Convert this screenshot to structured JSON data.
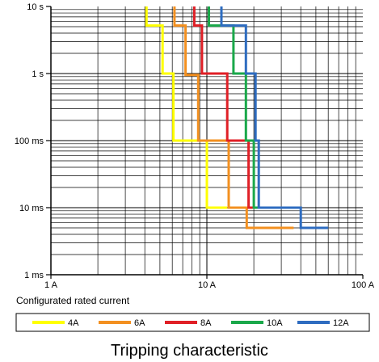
{
  "chart_data": {
    "type": "line",
    "title": "",
    "caption": "Tripping characteristic",
    "xlabel": "Configurated rated current",
    "ylabel": "",
    "x_scale": "log",
    "y_scale": "log",
    "x_ticks": [
      {
        "value": 1,
        "label": "1 A"
      },
      {
        "value": 10,
        "label": "10 A"
      },
      {
        "value": 100,
        "label": "100 A"
      }
    ],
    "y_ticks": [
      {
        "value": 0.001,
        "label": "1 ms"
      },
      {
        "value": 0.01,
        "label": "10 ms"
      },
      {
        "value": 0.1,
        "label": "100 ms"
      },
      {
        "value": 1,
        "label": "1 s"
      },
      {
        "value": 10,
        "label": "10 s"
      }
    ],
    "xlim": [
      1,
      100
    ],
    "ylim": [
      0.001,
      10
    ],
    "grid": true,
    "legend_position": "bottom",
    "series": [
      {
        "name": "4A",
        "color": "#ffff00",
        "points": [
          [
            4.1,
            10
          ],
          [
            4.1,
            5.2
          ],
          [
            5.2,
            5.2
          ],
          [
            5.2,
            1.0
          ],
          [
            6.1,
            1.0
          ],
          [
            6.1,
            0.1
          ],
          [
            10,
            0.1
          ],
          [
            10,
            0.01
          ],
          [
            13.5,
            0.01
          ]
        ]
      },
      {
        "name": "6A",
        "color": "#f39020",
        "points": [
          [
            6.2,
            10
          ],
          [
            6.2,
            5.2
          ],
          [
            7.3,
            5.2
          ],
          [
            7.3,
            0.95
          ],
          [
            8.8,
            0.95
          ],
          [
            8.8,
            0.1
          ],
          [
            13.8,
            0.1
          ],
          [
            13.8,
            0.01
          ],
          [
            18,
            0.01
          ],
          [
            18,
            0.005
          ],
          [
            36,
            0.005
          ]
        ]
      },
      {
        "name": "8A",
        "color": "#e01f26",
        "points": [
          [
            8.3,
            10
          ],
          [
            8.3,
            5.2
          ],
          [
            9.3,
            5.2
          ],
          [
            9.3,
            1.0
          ],
          [
            13.5,
            1.0
          ],
          [
            13.5,
            0.1
          ],
          [
            18.5,
            0.1
          ],
          [
            18.5,
            0.01
          ],
          [
            21,
            0.01
          ]
        ]
      },
      {
        "name": "10A",
        "color": "#1aa84a",
        "points": [
          [
            10.3,
            10
          ],
          [
            10.3,
            5.2
          ],
          [
            14.8,
            5.2
          ],
          [
            14.8,
            1.0
          ],
          [
            17.8,
            1.0
          ],
          [
            17.8,
            0.1
          ],
          [
            20,
            0.1
          ],
          [
            20,
            0.01
          ],
          [
            23,
            0.01
          ]
        ]
      },
      {
        "name": "12A",
        "color": "#2e6cc0",
        "points": [
          [
            12.4,
            10
          ],
          [
            12.4,
            5.2
          ],
          [
            17.8,
            5.2
          ],
          [
            17.8,
            1.0
          ],
          [
            20.5,
            1.0
          ],
          [
            20.5,
            0.1
          ],
          [
            21.5,
            0.1
          ],
          [
            21.5,
            0.01
          ],
          [
            40,
            0.01
          ],
          [
            40,
            0.005
          ],
          [
            60,
            0.005
          ]
        ]
      }
    ]
  }
}
